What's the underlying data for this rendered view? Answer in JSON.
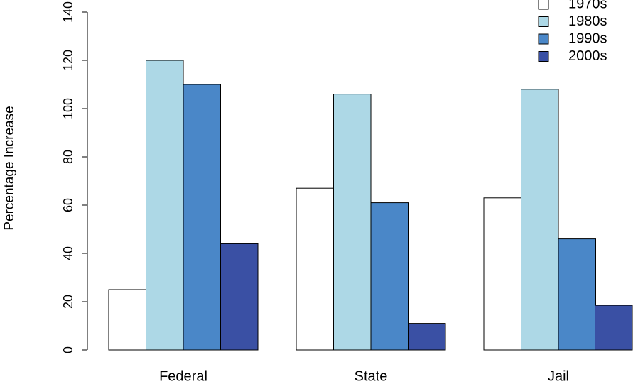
{
  "chart_data": {
    "type": "bar",
    "y_label": "Percentage Increase",
    "categories": [
      "Federal",
      "State",
      "Jail"
    ],
    "series": [
      {
        "name": "1970s",
        "color": "#ffffff",
        "values": [
          25,
          67,
          63
        ]
      },
      {
        "name": "1980s",
        "color": "#add8e6",
        "values": [
          120,
          106,
          108
        ]
      },
      {
        "name": "1990s",
        "color": "#4a87c8",
        "values": [
          110,
          61,
          46
        ]
      },
      {
        "name": "2000s",
        "color": "#3a50a4",
        "values": [
          44,
          11,
          18.5
        ]
      }
    ],
    "ylim": [
      0,
      140
    ],
    "yticks": [
      0,
      20,
      40,
      60,
      80,
      100,
      120,
      140
    ],
    "grid": false,
    "legend": "top-right"
  }
}
